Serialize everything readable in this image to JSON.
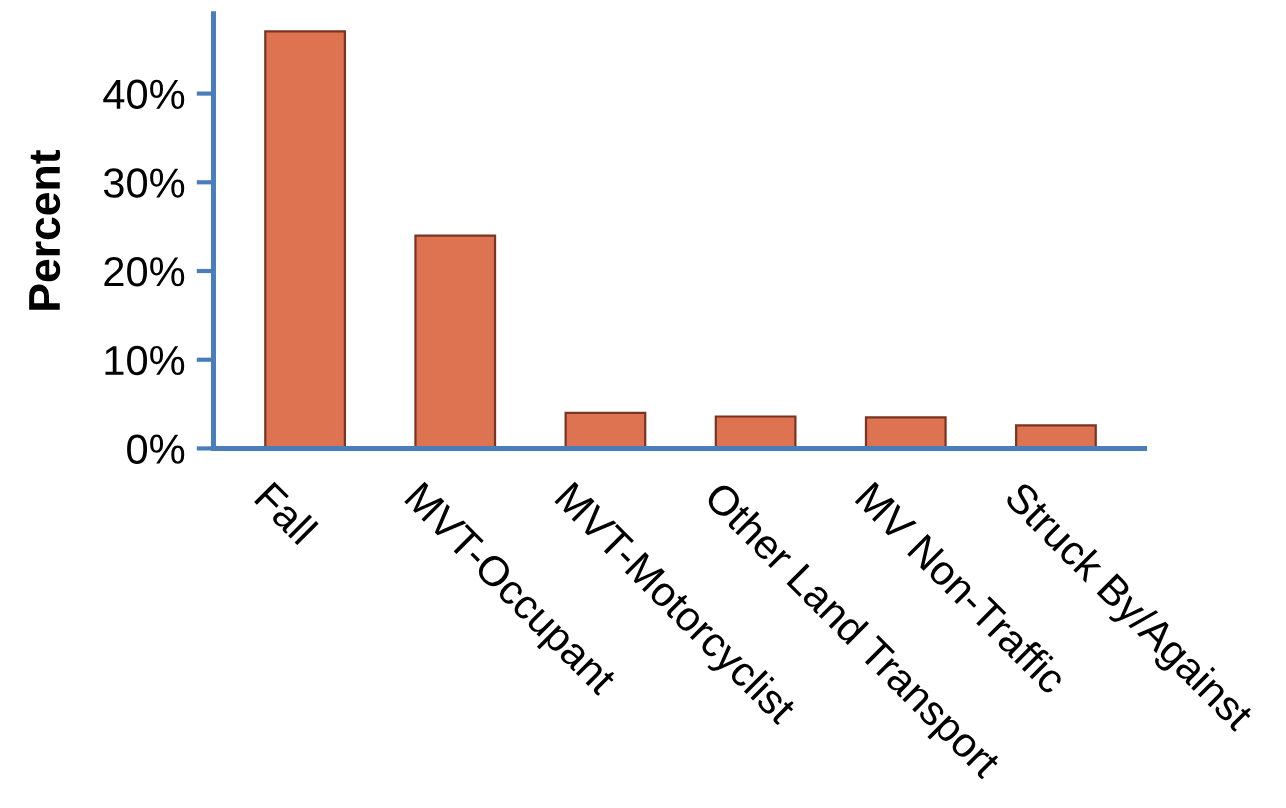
{
  "chart_data": {
    "type": "bar",
    "ylabel": "Percent",
    "categories": [
      "Fall",
      "MVT-Occupant",
      "MVT-Motorcyclist",
      "Other Land Transport",
      "MV Non-Traffic",
      "Struck By/Against"
    ],
    "values": [
      47,
      24,
      4,
      3.6,
      3.5,
      2.6
    ],
    "color": "#dd7350",
    "ylim": [
      0,
      49
    ],
    "yticks": [
      {
        "value": 0,
        "label": "0%"
      },
      {
        "value": 10,
        "label": "10%"
      },
      {
        "value": 20,
        "label": "20%"
      },
      {
        "value": 30,
        "label": "30%"
      },
      {
        "value": 40,
        "label": "40%"
      }
    ],
    "grid": false,
    "legend": false
  }
}
